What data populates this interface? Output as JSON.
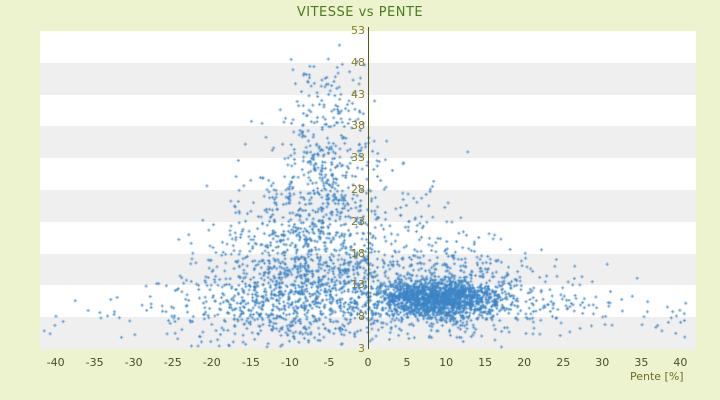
{
  "chart_data": {
    "type": "scatter",
    "title": "VITESSE vs PENTE",
    "xlabel": "Pente [%]",
    "ylabel": "",
    "xlim": [
      -42,
      42
    ],
    "ylim": [
      3,
      53
    ],
    "x_ticks": [
      -40,
      -35,
      -30,
      -25,
      -20,
      -15,
      -10,
      -5,
      0,
      5,
      10,
      15,
      20,
      25,
      30,
      35,
      40
    ],
    "y_ticks": [
      3,
      8,
      13,
      18,
      23,
      28,
      33,
      38,
      43,
      48,
      53
    ],
    "grid": "horizontal-bands",
    "legend": "none",
    "band_colors": [
      "#ffffff",
      "#efefef"
    ],
    "point_color": "#3d85c6",
    "point_shape": "cross",
    "zero_line_color": "#4f5a20",
    "seed": 1337,
    "colors": {
      "background": "#edf2cf",
      "title": "#4b7b1e",
      "x_tick": "#4c4c2e",
      "y_tick": "#8a7d22",
      "x_label": "#6e6e28"
    },
    "clusters": [
      {
        "n": 1600,
        "cx": 9,
        "cy": 10.8,
        "sx": 4.2,
        "sy": 1.5
      },
      {
        "n": 350,
        "cx": 11,
        "cy": 13,
        "sx": 7,
        "sy": 3
      },
      {
        "n": 90,
        "cx": 7,
        "cy": 22,
        "sx": 4,
        "sy": 4
      },
      {
        "n": 700,
        "cx": -6,
        "cy": 14,
        "sx": 5.5,
        "sy": 5
      },
      {
        "n": 450,
        "cx": -6.5,
        "cy": 24,
        "sx": 4.5,
        "sy": 6
      },
      {
        "n": 200,
        "cx": -5,
        "cy": 35,
        "sx": 3,
        "sy": 5
      },
      {
        "n": 45,
        "cx": -5.5,
        "cy": 45.5,
        "sx": 2.5,
        "sy": 2.5
      },
      {
        "n": 350,
        "cx": -13,
        "cy": 10,
        "sx": 6.5,
        "sy": 3
      },
      {
        "n": 120,
        "cx": -16,
        "cy": 16,
        "sx": 4,
        "sy": 5
      },
      {
        "n": 180,
        "cx": 2,
        "cy": 8,
        "sx": 14,
        "sy": 2.5
      },
      {
        "n": 60,
        "cx": 28,
        "cy": 9,
        "sx": 7,
        "sy": 1.8
      },
      {
        "n": 25,
        "cx": -33,
        "cy": 8,
        "sx": 5,
        "sy": 1.5
      },
      {
        "n": 12,
        "cx": 38,
        "cy": 8,
        "sx": 2.5,
        "sy": 1.2
      }
    ]
  }
}
